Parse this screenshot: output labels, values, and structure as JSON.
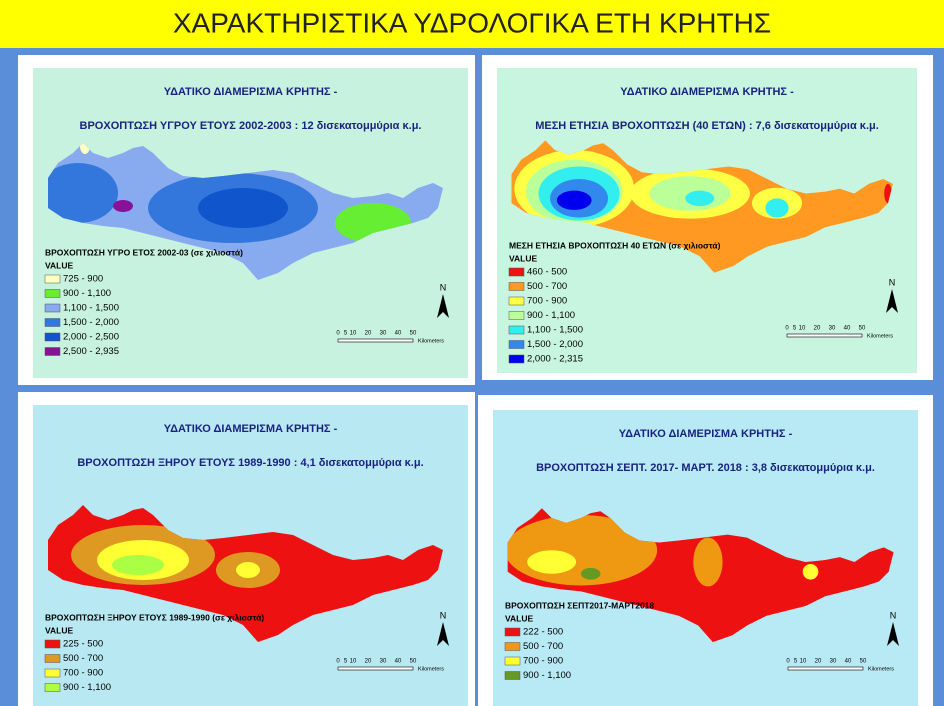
{
  "title": "ΧΑΡΑΚΤΗΡΙΣΤΙΚΑ ΥΔΡΟΛΟΓΙΚΑ ΕΤΗ ΚΡΗΤΗΣ",
  "scale_labels": [
    "0",
    "5",
    "10",
    "20",
    "30",
    "40",
    "50"
  ],
  "scale_unit": "Kilometers",
  "north": "N",
  "panels": [
    {
      "header_line1": "ΥΔΑΤΙΚΟ ΔΙΑΜΕΡΙΣΜΑ ΚΡΗΤΗΣ -",
      "header_line2": "ΒΡΟΧΟΠΤΩΣΗ ΥΓΡΟΥ ΕΤΟΥΣ 2002-2003 : 12  δισεκατομμύρια κ.μ.",
      "legend_title": "ΒΡΟΧΟΠΤΩΣΗ ΥΓΡΟ ΕΤΟΣ 2002-03 (σε χιλιοστά)",
      "legend_value": "VALUE",
      "legend": [
        {
          "label": "725 - 900",
          "color": "#ffffc0"
        },
        {
          "label": "900 - 1,100",
          "color": "#66ee33"
        },
        {
          "label": "1,100 - 1,500",
          "color": "#88aaee"
        },
        {
          "label": "1,500 - 2,000",
          "color": "#3377dd"
        },
        {
          "label": "2,000 - 2,500",
          "color": "#1155cc"
        },
        {
          "label": "2,500 - 2,935",
          "color": "#881199"
        }
      ]
    },
    {
      "header_line1": "ΥΔΑΤΙΚΟ ΔΙΑΜΕΡΙΣΜΑ ΚΡΗΤΗΣ -",
      "header_line2": "ΜΕΣΗ ΕΤΗΣΙΑ ΒΡΟΧΟΠΤΩΣΗ (40 ΕΤΩΝ)  : 7,6 δισεκατομμύρια κ.μ.",
      "legend_title": "ΜΕΣΗ ΕΤΗΣΙΑ ΒΡΟΧΟΠΤΩΣΗ 40 ΕΤΩΝ (σε χιλιοστά)",
      "legend_value": "VALUE",
      "legend": [
        {
          "label": "460 - 500",
          "color": "#ee1111"
        },
        {
          "label": "500 - 700",
          "color": "#ff9922"
        },
        {
          "label": "700 - 900",
          "color": "#ffff44"
        },
        {
          "label": "900 - 1,100",
          "color": "#bbff99"
        },
        {
          "label": "1,100 - 1,500",
          "color": "#33eeee"
        },
        {
          "label": "1,500 - 2,000",
          "color": "#3388ee"
        },
        {
          "label": "2,000 - 2,315",
          "color": "#0000ee"
        }
      ]
    },
    {
      "header_line1": "ΥΔΑΤΙΚΟ ΔΙΑΜΕΡΙΣΜΑ ΚΡΗΤΗΣ -",
      "header_line2": "ΒΡΟΧΟΠΤΩΣΗ ΞΗΡΟΥ ΕΤΟΥΣ 1989-1990 : 4,1 δισεκατομμύρια κ.μ.",
      "legend_title": "ΒΡΟΧΟΠΤΩΣΗ ΞΗΡΟΥ ΕΤΟΥΣ 1989-1990 (σε χιλιοστά)",
      "legend_value": "VALUE",
      "legend": [
        {
          "label": "225 - 500",
          "color": "#ee1111"
        },
        {
          "label": "500 - 700",
          "color": "#dd9922"
        },
        {
          "label": "700 - 900",
          "color": "#ffff33"
        },
        {
          "label": "900 - 1,100",
          "color": "#aaff44"
        }
      ]
    },
    {
      "header_line1": "ΥΔΑΤΙΚΟ ΔΙΑΜΕΡΙΣΜΑ ΚΡΗΤΗΣ -",
      "header_line2": "ΒΡΟΧΟΠΤΩΣΗ ΣΕΠΤ. 2017- ΜΑΡΤ. 2018 : 3,8 δισεκατομμύρια κ.μ.",
      "legend_title": "ΒΡΟΧΟΠΤΩΣΗ ΣΕΠΤ2017-ΜΑΡΤ2018",
      "legend_value": "VALUE",
      "legend": [
        {
          "label": "222 - 500",
          "color": "#ee1111"
        },
        {
          "label": "500 - 700",
          "color": "#ee9911"
        },
        {
          "label": "700 - 900",
          "color": "#ffff33"
        },
        {
          "label": "900 - 1,100",
          "color": "#669922"
        }
      ]
    }
  ]
}
